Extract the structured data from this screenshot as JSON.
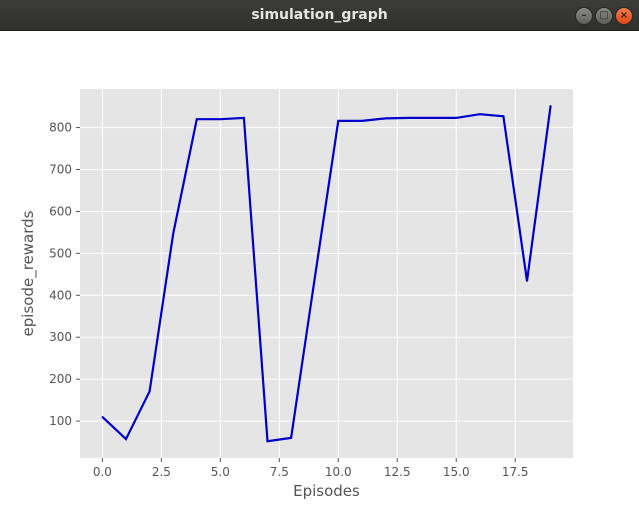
{
  "window": {
    "title": "simulation_graph"
  },
  "colors": {
    "plot_background": "#E5E5E5",
    "grid": "#FFFFFF",
    "line": "#0000CC",
    "text": "#555555"
  },
  "chart_data": {
    "type": "line",
    "title": "",
    "xlabel": "Episodes",
    "ylabel": "episode_rewards",
    "xlim": [
      -0.95,
      19.95
    ],
    "ylim": [
      12,
      892
    ],
    "x_ticks": [
      0.0,
      2.5,
      5.0,
      7.5,
      10.0,
      12.5,
      15.0,
      17.5
    ],
    "x_tick_labels": [
      "0.0",
      "2.5",
      "5.0",
      "7.5",
      "10.0",
      "12.5",
      "15.0",
      "17.5"
    ],
    "y_ticks": [
      100,
      200,
      300,
      400,
      500,
      600,
      700,
      800
    ],
    "y_tick_labels": [
      "100",
      "200",
      "300",
      "400",
      "500",
      "600",
      "700",
      "800"
    ],
    "grid": true,
    "legend": false,
    "series": [
      {
        "x": [
          0,
          1,
          2,
          3,
          4,
          5,
          6,
          7,
          8,
          9,
          10,
          11,
          12,
          13,
          14,
          15,
          16,
          17,
          18,
          19
        ],
        "y": [
          110,
          57,
          171,
          547,
          820,
          820,
          823,
          52,
          60,
          440,
          816,
          816,
          822,
          823,
          823,
          823,
          832,
          827,
          434,
          852
        ]
      }
    ]
  }
}
